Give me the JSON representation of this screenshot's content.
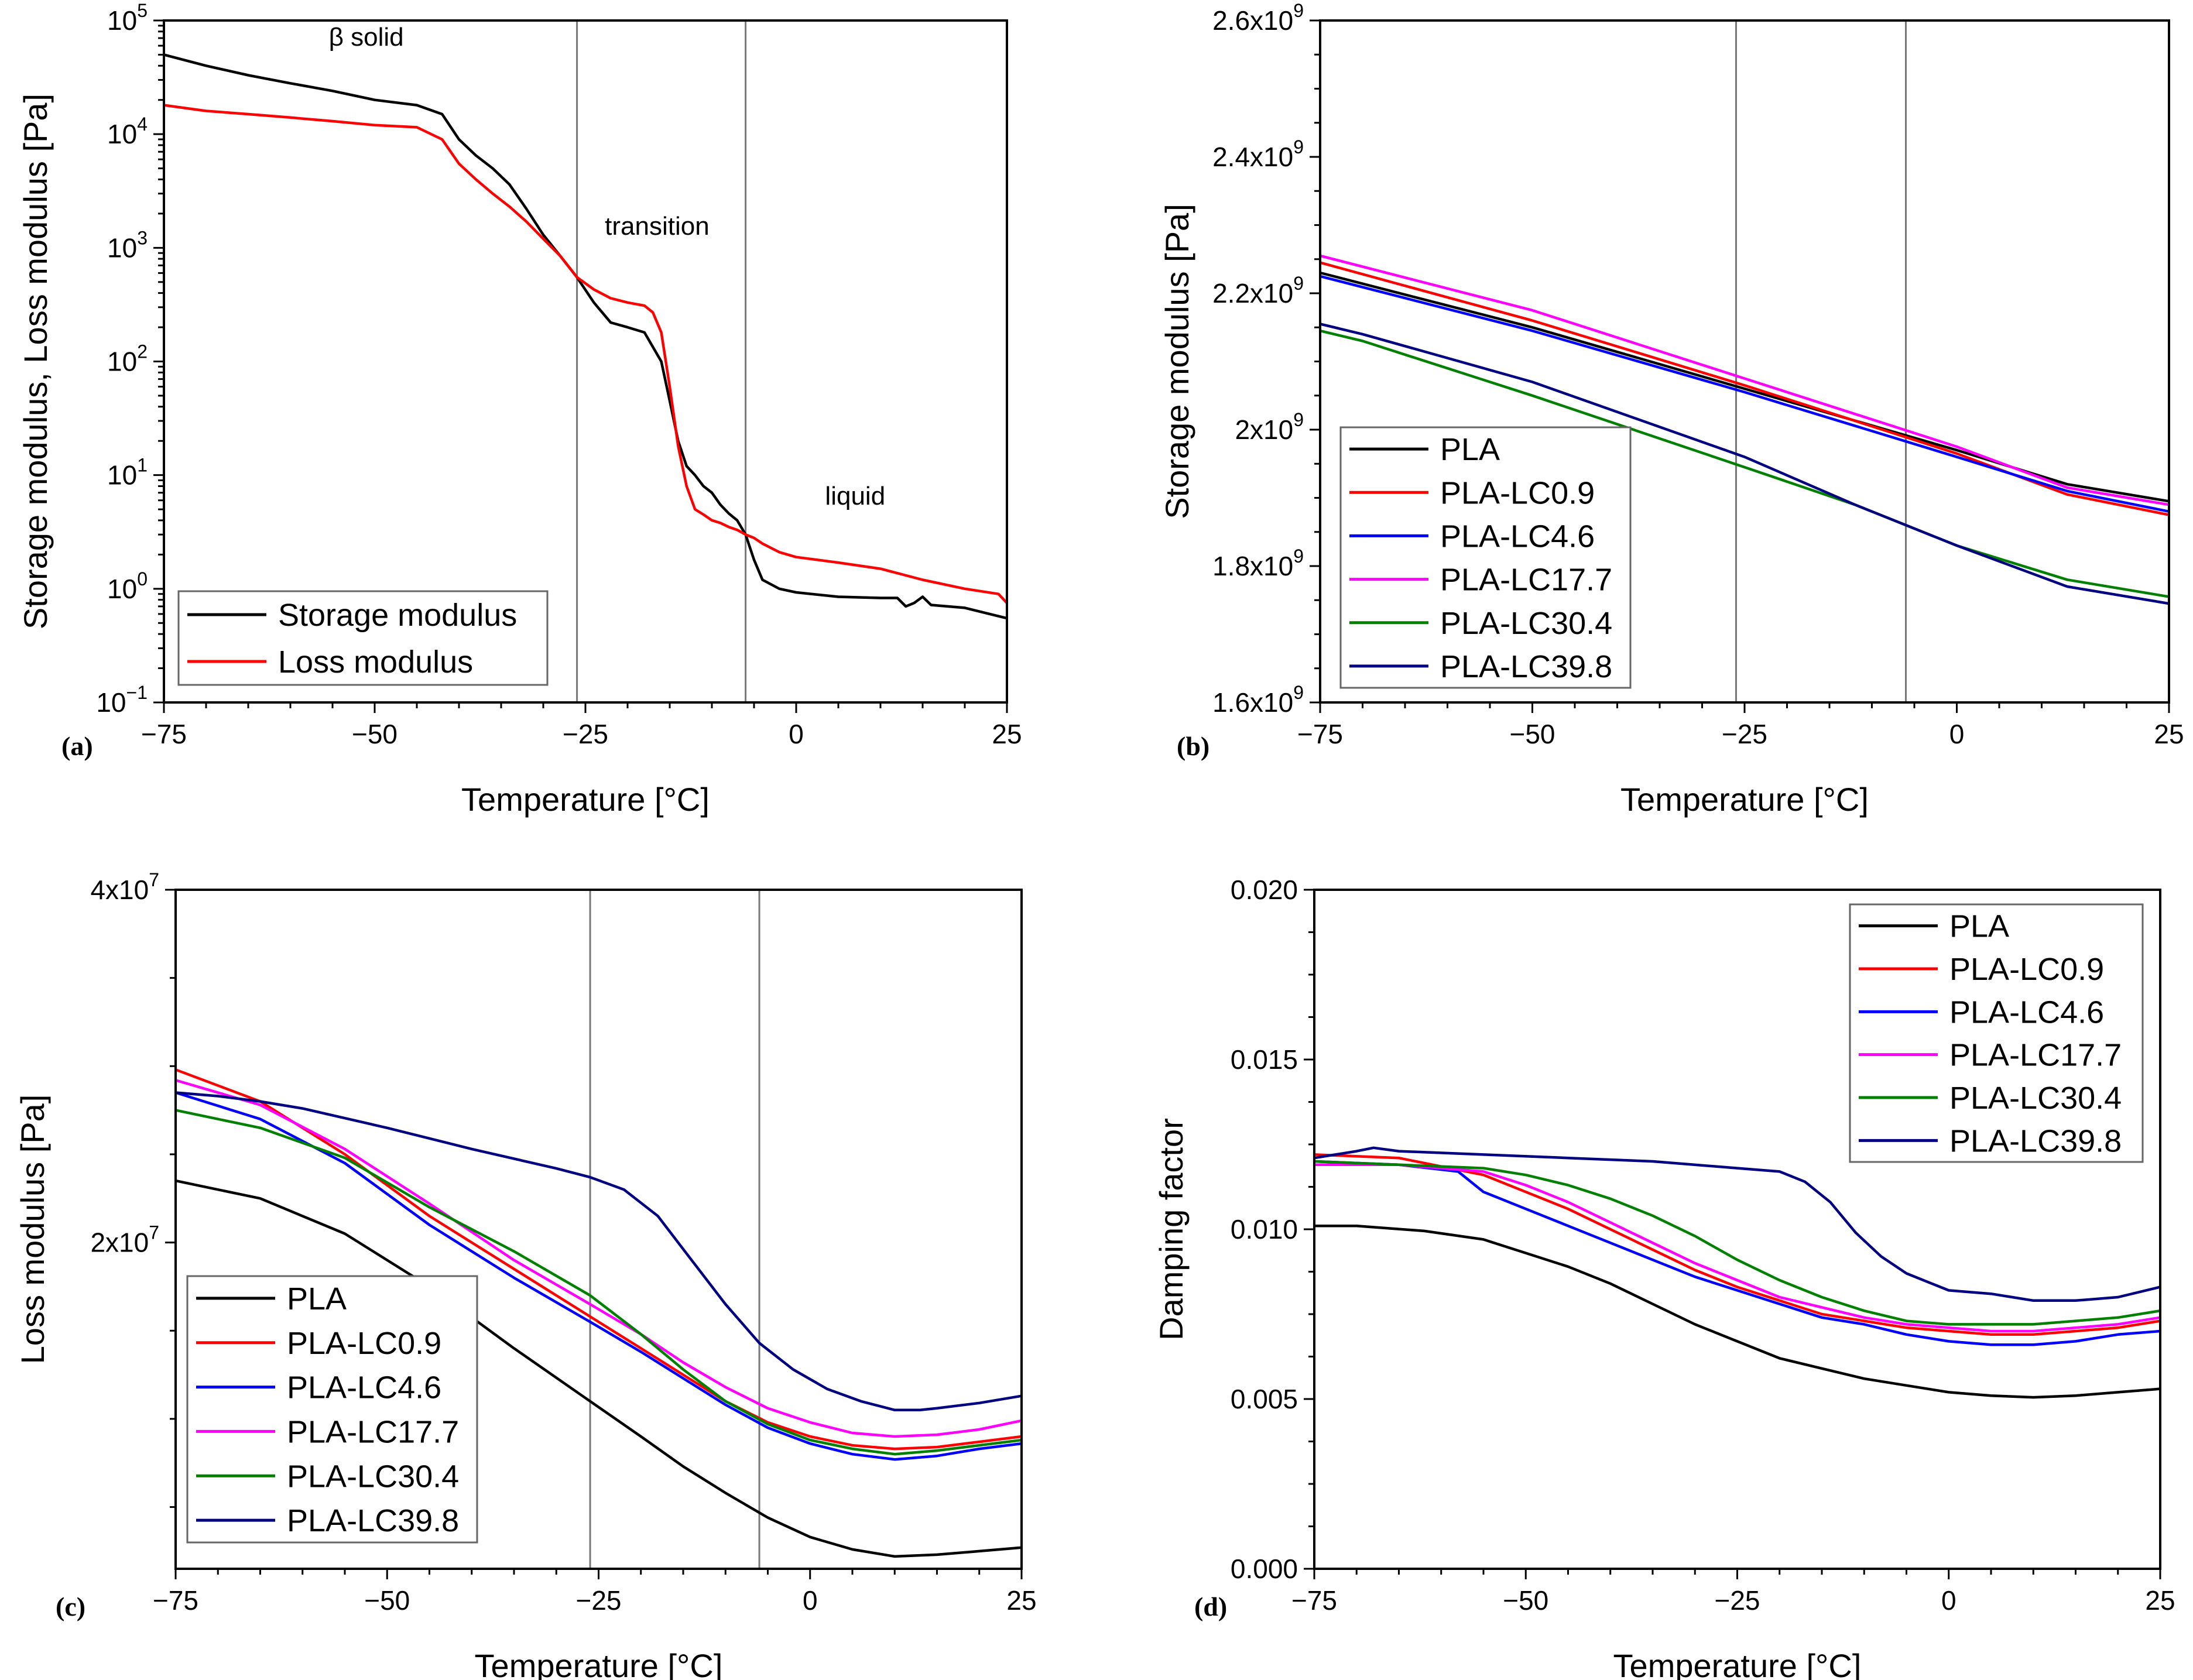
{
  "chart_data": [
    {
      "id": "a",
      "type": "line",
      "panel_label": "(a)",
      "title": "",
      "xlabel": "Temperature [°C]",
      "ylabel": "Storage modulus, Loss modulus [Pa]",
      "xlim": [
        -75,
        25
      ],
      "ylim": [
        0.1,
        100000
      ],
      "yscale": "log",
      "xticks": [
        -75,
        -50,
        -25,
        0,
        25
      ],
      "xtick_labels": [
        "−75",
        "−50",
        "−25",
        "0",
        "25"
      ],
      "yticks": [
        0.1,
        1,
        10,
        100,
        1000,
        10000,
        100000
      ],
      "ytick_labels": [
        {
          "m": "10",
          "e": "−1"
        },
        {
          "m": "10",
          "e": "0"
        },
        {
          "m": "10",
          "e": "1"
        },
        {
          "m": "10",
          "e": "2"
        },
        {
          "m": "10",
          "e": "3"
        },
        {
          "m": "10",
          "e": "4"
        },
        {
          "m": "10",
          "e": "5"
        }
      ],
      "vlines": [
        -26,
        -6
      ],
      "annotations": [
        {
          "text": "β solid",
          "x": -51,
          "y": 60000
        },
        {
          "text": "transition",
          "x": -16.5,
          "y": 1300
        },
        {
          "text": "liquid",
          "x": 7,
          "y": 5.5
        }
      ],
      "legend_position": "bottom-left",
      "series": [
        {
          "name": "Storage modulus",
          "color": "#000000",
          "x": [
            -75,
            -70,
            -65,
            -60,
            -55,
            -50,
            -45,
            -42,
            -40,
            -38,
            -36,
            -34,
            -32,
            -30,
            -28,
            -26,
            -24,
            -22,
            -20,
            -18,
            -16,
            -15,
            -14,
            -13,
            -12,
            -11,
            -10,
            -9,
            -8,
            -7,
            -6,
            -5,
            -4,
            -2,
            0,
            5,
            10,
            12,
            13,
            14,
            15,
            16,
            20,
            25
          ],
          "y": [
            50000,
            40000,
            33000,
            28000,
            24000,
            20000,
            18000,
            15000,
            9000,
            6500,
            5000,
            3600,
            2200,
            1300,
            850,
            550,
            330,
            220,
            200,
            180,
            100,
            45,
            20,
            12,
            10,
            8,
            7,
            5.5,
            4.6,
            4,
            3,
            1.8,
            1.2,
            1.0,
            0.93,
            0.85,
            0.83,
            0.83,
            0.7,
            0.75,
            0.85,
            0.72,
            0.68,
            0.55
          ]
        },
        {
          "name": "Loss modulus",
          "color": "#ff0000",
          "x": [
            -75,
            -70,
            -65,
            -60,
            -55,
            -50,
            -45,
            -42,
            -40,
            -38,
            -36,
            -34,
            -32,
            -30,
            -28,
            -26,
            -24,
            -22,
            -20,
            -18,
            -17,
            -16,
            -15,
            -14,
            -13,
            -12,
            -11,
            -10,
            -9,
            -8,
            -7,
            -6,
            -5,
            -4,
            -2,
            0,
            5,
            10,
            15,
            20,
            24,
            25
          ],
          "y": [
            18000,
            16000,
            15000,
            14000,
            13000,
            12000,
            11500,
            9000,
            5500,
            4000,
            3000,
            2300,
            1700,
            1200,
            850,
            550,
            430,
            360,
            330,
            310,
            270,
            180,
            60,
            18,
            8,
            5,
            4.5,
            4,
            3.8,
            3.5,
            3.3,
            3,
            2.8,
            2.5,
            2.1,
            1.9,
            1.7,
            1.5,
            1.2,
            1.0,
            0.9,
            0.75
          ]
        }
      ]
    },
    {
      "id": "b",
      "type": "line",
      "panel_label": "(b)",
      "title": "",
      "xlabel": "Temperature [°C]",
      "ylabel": "Storage modulus [Pa]",
      "xlim": [
        -75,
        25
      ],
      "ylim": [
        1600000000,
        2600000000
      ],
      "xticks": [
        -75,
        -50,
        -25,
        0,
        25
      ],
      "xtick_labels": [
        "−75",
        "−50",
        "−25",
        "0",
        "25"
      ],
      "yticks": [
        1600000000,
        1800000000,
        2000000000,
        2200000000,
        2400000000,
        2600000000
      ],
      "ytick_labels": [
        {
          "m": "1.6x10",
          "e": "9"
        },
        {
          "m": "1.8x10",
          "e": "9"
        },
        {
          "m": "2x10",
          "e": "9"
        },
        {
          "m": "2.2x10",
          "e": "9"
        },
        {
          "m": "2.4x10",
          "e": "9"
        },
        {
          "m": "2.6x10",
          "e": "9"
        }
      ],
      "vlines": [
        -26,
        -6
      ],
      "legend_position": "bottom-left",
      "series": [
        {
          "name": "PLA",
          "color": "#000000",
          "x": [
            -75,
            -50,
            -25,
            0,
            13,
            25
          ],
          "y": [
            2230000000,
            2150000000,
            2060000000,
            1970000000,
            1920000000,
            1895000000
          ]
        },
        {
          "name": "PLA-LC0.9",
          "color": "#ff0000",
          "x": [
            -75,
            -50,
            -25,
            0,
            13,
            25
          ],
          "y": [
            2245000000,
            2160000000,
            2065000000,
            1965000000,
            1905000000,
            1875000000
          ]
        },
        {
          "name": "PLA-LC4.6",
          "color": "#0000ff",
          "x": [
            -75,
            -50,
            -25,
            0,
            13,
            25
          ],
          "y": [
            2225000000,
            2145000000,
            2055000000,
            1960000000,
            1910000000,
            1880000000
          ]
        },
        {
          "name": "PLA-LC17.7",
          "color": "#ff00ff",
          "x": [
            -75,
            -50,
            -25,
            0,
            13,
            25
          ],
          "y": [
            2255000000,
            2175000000,
            2075000000,
            1975000000,
            1915000000,
            1890000000
          ]
        },
        {
          "name": "PLA-LC30.4",
          "color": "#008000",
          "x": [
            -75,
            -70,
            -50,
            -25,
            -12,
            0,
            13,
            25
          ],
          "y": [
            2145000000,
            2130000000,
            2050000000,
            1945000000,
            1890000000,
            1830000000,
            1780000000,
            1755000000
          ]
        },
        {
          "name": "PLA-LC39.8",
          "color": "#000080",
          "x": [
            -75,
            -70,
            -50,
            -25,
            -12,
            0,
            13,
            25
          ],
          "y": [
            2155000000,
            2140000000,
            2070000000,
            1960000000,
            1890000000,
            1830000000,
            1770000000,
            1745000000
          ]
        }
      ]
    },
    {
      "id": "c",
      "type": "line",
      "panel_label": "(c)",
      "title": "",
      "xlabel": "Temperature [°C]",
      "ylabel": "Loss modulus [Pa]",
      "xlim": [
        -75,
        25
      ],
      "ylim": [
        1500000,
        40000000
      ],
      "xticks": [
        -75,
        -50,
        -25,
        0,
        25
      ],
      "xtick_labels": [
        "−75",
        "−50",
        "−25",
        "0",
        "25"
      ],
      "yticks": [
        20000000,
        40000000
      ],
      "ytick_labels": [
        {
          "m": "2x10",
          "e": "7"
        },
        {
          "m": "4x10",
          "e": "7"
        }
      ],
      "vlines": [
        -26,
        -6
      ],
      "legend_position": "bottom-left",
      "series": [
        {
          "name": "PLA",
          "color": "#000000",
          "x": [
            -75,
            -65,
            -55,
            -45,
            -35,
            -26,
            -20,
            -15,
            -10,
            -5,
            0,
            5,
            10,
            15,
            20,
            25
          ],
          "y": [
            23500000,
            22500000,
            20500000,
            17500000,
            14000000,
            11000000,
            9000000,
            7300000,
            5800000,
            4400000,
            3300000,
            2600000,
            2200000,
            2300000,
            2500000,
            2700000
          ]
        },
        {
          "name": "PLA-LC0.9",
          "color": "#ff0000",
          "x": [
            -75,
            -65,
            -55,
            -45,
            -35,
            -26,
            -20,
            -15,
            -10,
            -5,
            0,
            5,
            10,
            15,
            20,
            25
          ],
          "y": [
            29800000,
            28000000,
            25000000,
            21500000,
            18500000,
            15800000,
            14000000,
            12500000,
            11000000,
            9800000,
            9000000,
            8500000,
            8300000,
            8400000,
            8700000,
            9000000
          ]
        },
        {
          "name": "PLA-LC4.6",
          "color": "#0000ff",
          "x": [
            -75,
            -65,
            -55,
            -45,
            -35,
            -26,
            -20,
            -15,
            -10,
            -5,
            0,
            5,
            10,
            15,
            20,
            25
          ],
          "y": [
            28500000,
            27000000,
            24500000,
            21000000,
            18000000,
            15500000,
            13800000,
            12300000,
            10800000,
            9500000,
            8600000,
            8000000,
            7700000,
            7900000,
            8300000,
            8600000
          ]
        },
        {
          "name": "PLA-LC17.7",
          "color": "#ff00ff",
          "x": [
            -75,
            -65,
            -55,
            -45,
            -35,
            -26,
            -20,
            -15,
            -10,
            -5,
            0,
            5,
            10,
            15,
            20,
            25
          ],
          "y": [
            29200000,
            27800000,
            25300000,
            22200000,
            19000000,
            16500000,
            14800000,
            13200000,
            11800000,
            10600000,
            9800000,
            9200000,
            9000000,
            9100000,
            9400000,
            9900000
          ]
        },
        {
          "name": "PLA-LC30.4",
          "color": "#008000",
          "x": [
            -75,
            -65,
            -55,
            -45,
            -35,
            -26,
            -20,
            -15,
            -10,
            -5,
            0,
            5,
            10,
            15,
            20,
            25
          ],
          "y": [
            27500000,
            26500000,
            24800000,
            22000000,
            19500000,
            17000000,
            14800000,
            12800000,
            11000000,
            9700000,
            8800000,
            8300000,
            8000000,
            8200000,
            8500000,
            8800000
          ]
        },
        {
          "name": "PLA-LC39.8",
          "color": "#000080",
          "x": [
            -75,
            -70,
            -65,
            -60,
            -50,
            -40,
            -30,
            -26,
            -22,
            -18,
            -14,
            -10,
            -6,
            -2,
            2,
            6,
            10,
            13,
            15,
            20,
            25
          ],
          "y": [
            28500000,
            28300000,
            28000000,
            27600000,
            26500000,
            25300000,
            24200000,
            23700000,
            23000000,
            21500000,
            19000000,
            16500000,
            14300000,
            12800000,
            11700000,
            11000000,
            10500000,
            10500000,
            10600000,
            10900000,
            11300000
          ]
        }
      ]
    },
    {
      "id": "d",
      "type": "line",
      "panel_label": "(d)",
      "title": "",
      "xlabel": "Temperature [°C]",
      "ylabel": "Damping factor",
      "xlim": [
        -75,
        25
      ],
      "ylim": [
        0,
        0.02
      ],
      "xticks": [
        -75,
        -50,
        -25,
        0,
        25
      ],
      "xtick_labels": [
        "−75",
        "−50",
        "−25",
        "0",
        "25"
      ],
      "yticks": [
        0,
        0.005,
        0.01,
        0.015,
        0.02
      ],
      "ytick_labels": [
        {
          "m": "0.000",
          "e": ""
        },
        {
          "m": "0.005",
          "e": ""
        },
        {
          "m": "0.010",
          "e": ""
        },
        {
          "m": "0.015",
          "e": ""
        },
        {
          "m": "0.020",
          "e": ""
        }
      ],
      "legend_position": "top-right",
      "series": [
        {
          "name": "PLA",
          "color": "#000000",
          "x": [
            -75,
            -70,
            -62,
            -55,
            -50,
            -45,
            -40,
            -35,
            -30,
            -25,
            -20,
            -15,
            -10,
            -5,
            0,
            5,
            10,
            15,
            20,
            25
          ],
          "y": [
            0.0101,
            0.0101,
            0.00995,
            0.0097,
            0.0093,
            0.0089,
            0.0084,
            0.0078,
            0.0072,
            0.0067,
            0.0062,
            0.0059,
            0.0056,
            0.0054,
            0.0052,
            0.0051,
            0.00505,
            0.0051,
            0.0052,
            0.0053
          ]
        },
        {
          "name": "PLA-LC0.9",
          "color": "#ff0000",
          "x": [
            -75,
            -65,
            -55,
            -50,
            -45,
            -40,
            -35,
            -30,
            -25,
            -20,
            -15,
            -10,
            -5,
            0,
            5,
            10,
            15,
            20,
            25
          ],
          "y": [
            0.0122,
            0.0121,
            0.0116,
            0.0111,
            0.0106,
            0.01,
            0.0094,
            0.0088,
            0.0083,
            0.0079,
            0.0075,
            0.0073,
            0.0071,
            0.007,
            0.0069,
            0.0069,
            0.007,
            0.0071,
            0.0073
          ]
        },
        {
          "name": "PLA-LC4.6",
          "color": "#0000ff",
          "x": [
            -75,
            -65,
            -58,
            -55,
            -50,
            -45,
            -40,
            -35,
            -30,
            -25,
            -20,
            -15,
            -10,
            -5,
            0,
            5,
            10,
            15,
            20,
            25
          ],
          "y": [
            0.012,
            0.0119,
            0.0117,
            0.0111,
            0.0106,
            0.0101,
            0.0096,
            0.0091,
            0.0086,
            0.0082,
            0.0078,
            0.0074,
            0.0072,
            0.0069,
            0.0067,
            0.0066,
            0.0066,
            0.0067,
            0.0069,
            0.007
          ]
        },
        {
          "name": "PLA-LC17.7",
          "color": "#ff00ff",
          "x": [
            -75,
            -65,
            -55,
            -50,
            -45,
            -40,
            -35,
            -30,
            -25,
            -20,
            -15,
            -10,
            -5,
            0,
            5,
            10,
            15,
            20,
            25
          ],
          "y": [
            0.0119,
            0.0119,
            0.0117,
            0.0113,
            0.0108,
            0.0102,
            0.0096,
            0.009,
            0.0085,
            0.008,
            0.0077,
            0.0074,
            0.0072,
            0.0071,
            0.007,
            0.007,
            0.0071,
            0.0072,
            0.0074
          ]
        },
        {
          "name": "PLA-LC30.4",
          "color": "#008000",
          "x": [
            -75,
            -65,
            -55,
            -50,
            -45,
            -40,
            -35,
            -30,
            -25,
            -20,
            -15,
            -10,
            -5,
            0,
            5,
            10,
            15,
            20,
            25
          ],
          "y": [
            0.012,
            0.0119,
            0.0118,
            0.0116,
            0.0113,
            0.0109,
            0.0104,
            0.0098,
            0.0091,
            0.0085,
            0.008,
            0.0076,
            0.0073,
            0.0072,
            0.0072,
            0.0072,
            0.0073,
            0.0074,
            0.0076
          ]
        },
        {
          "name": "PLA-LC39.8",
          "color": "#000080",
          "x": [
            -75,
            -70,
            -68,
            -65,
            -55,
            -45,
            -35,
            -25,
            -20,
            -17,
            -14,
            -11,
            -8,
            -5,
            -2,
            0,
            5,
            10,
            15,
            20,
            25
          ],
          "y": [
            0.0121,
            0.0123,
            0.0124,
            0.0123,
            0.0122,
            0.0121,
            0.012,
            0.0118,
            0.0117,
            0.0114,
            0.0108,
            0.0099,
            0.0092,
            0.0087,
            0.0084,
            0.0082,
            0.0081,
            0.0079,
            0.0079,
            0.008,
            0.0083
          ]
        }
      ]
    }
  ]
}
